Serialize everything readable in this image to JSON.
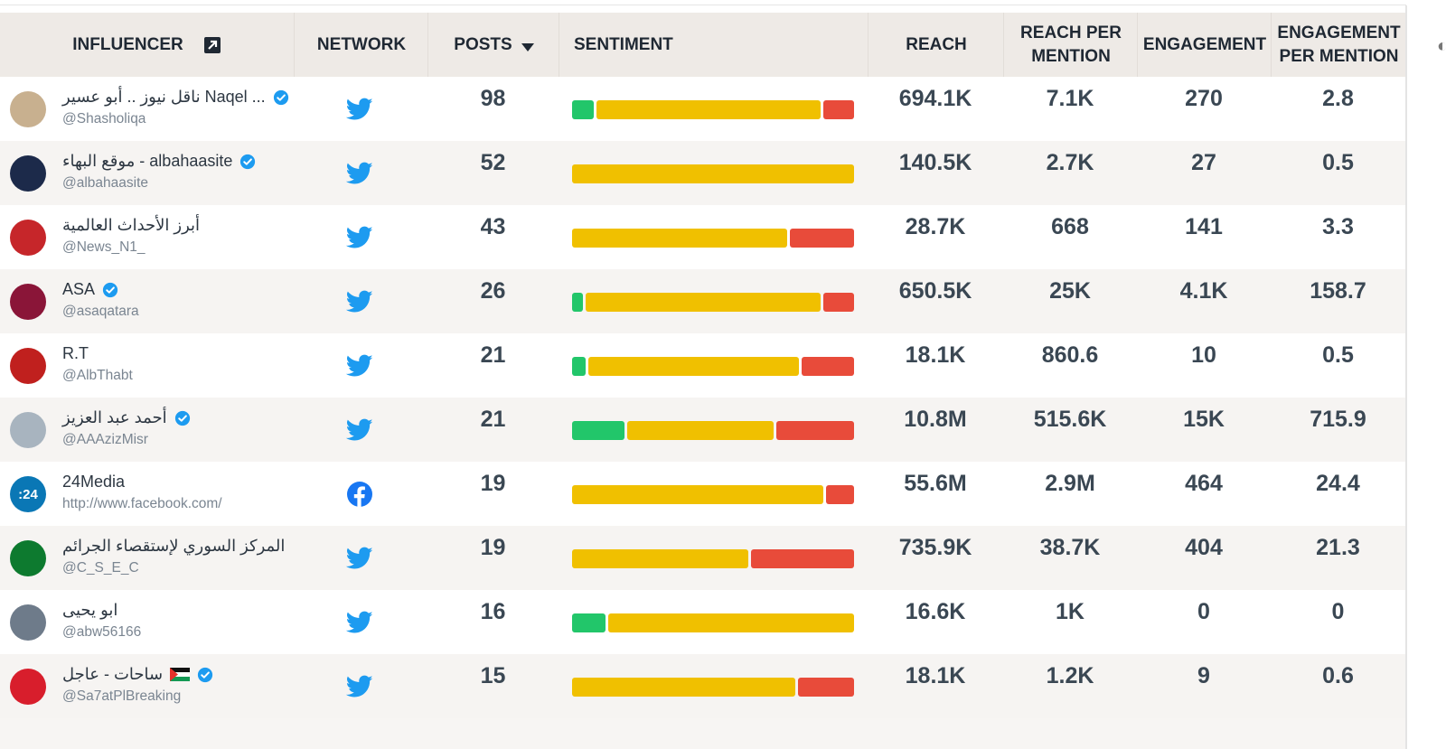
{
  "header": {
    "influencer": "INFLUENCER",
    "network": "NETWORK",
    "posts": "POSTS",
    "sentiment": "SENTIMENT",
    "reach": "REACH",
    "reach_per_mention": "REACH PER MENTION",
    "engagement": "ENGAGEMENT",
    "engagement_per_mention": "ENGAGEMENT PER MENTION"
  },
  "colors": {
    "positive": "#22c66a",
    "neutral": "#f0c000",
    "negative": "#e84b3a",
    "twitter": "#1d9bf0",
    "facebook": "#1877f2"
  },
  "rows": [
    {
      "name": "ناقل نيوز .. أبو عسير Naqel ...",
      "handle": "@Shasholiqa",
      "verified": true,
      "network": "twitter",
      "posts": "98",
      "sentiment": [
        0.08,
        0.81,
        0.11
      ],
      "reach": "694.1K",
      "reach_per_mention": "7.1K",
      "engagement": "270",
      "engagement_per_mention": "2.8",
      "avatar_color": "#c8b08f",
      "avatar_text": ""
    },
    {
      "name": "موقع البهاء - albahaasite",
      "handle": "@albahaasite",
      "verified": true,
      "network": "twitter",
      "posts": "52",
      "sentiment": [
        0,
        1,
        0
      ],
      "reach": "140.5K",
      "reach_per_mention": "2.7K",
      "engagement": "27",
      "engagement_per_mention": "0.5",
      "avatar_color": "#1c2a4a",
      "avatar_text": ""
    },
    {
      "name": "أبرز الأحداث العالمية",
      "handle": "@News_N1_",
      "verified": false,
      "network": "twitter",
      "posts": "43",
      "sentiment": [
        0,
        0.77,
        0.23
      ],
      "reach": "28.7K",
      "reach_per_mention": "668",
      "engagement": "141",
      "engagement_per_mention": "3.3",
      "avatar_color": "#c6262a",
      "avatar_text": ""
    },
    {
      "name": "ASA",
      "handle": "@asaqatara",
      "verified": true,
      "network": "twitter",
      "posts": "26",
      "sentiment": [
        0.04,
        0.85,
        0.11
      ],
      "reach": "650.5K",
      "reach_per_mention": "25K",
      "engagement": "4.1K",
      "engagement_per_mention": "158.7",
      "avatar_color": "#8a1538",
      "avatar_text": ""
    },
    {
      "name": "R.T",
      "handle": "@AlbThabt",
      "verified": false,
      "network": "twitter",
      "posts": "21",
      "sentiment": [
        0.05,
        0.76,
        0.19
      ],
      "reach": "18.1K",
      "reach_per_mention": "860.6",
      "engagement": "10",
      "engagement_per_mention": "0.5",
      "avatar_color": "#c0201e",
      "avatar_text": ""
    },
    {
      "name": "أحمد عبد العزيز",
      "handle": "@AAAzizMisr",
      "verified": true,
      "network": "twitter",
      "posts": "21",
      "sentiment": [
        0.19,
        0.53,
        0.28
      ],
      "reach": "10.8M",
      "reach_per_mention": "515.6K",
      "engagement": "15K",
      "engagement_per_mention": "715.9",
      "avatar_color": "#a8b4bf",
      "avatar_text": ""
    },
    {
      "name": "24Media",
      "handle": "http://www.facebook.com/",
      "verified": false,
      "network": "facebook",
      "posts": "19",
      "sentiment": [
        0,
        0.9,
        0.1
      ],
      "reach": "55.6M",
      "reach_per_mention": "2.9M",
      "engagement": "464",
      "engagement_per_mention": "24.4",
      "avatar_color": "#0a77b5",
      "avatar_text": ":24"
    },
    {
      "name": "المركز السوري لإستقصاء الجرائم",
      "handle": "@C_S_E_C",
      "verified": false,
      "network": "twitter",
      "posts": "19",
      "sentiment": [
        0,
        0.63,
        0.37
      ],
      "reach": "735.9K",
      "reach_per_mention": "38.7K",
      "engagement": "404",
      "engagement_per_mention": "21.3",
      "avatar_color": "#0d7a2f",
      "avatar_text": ""
    },
    {
      "name": "ابو يحيى",
      "handle": "@abw56166",
      "verified": false,
      "network": "twitter",
      "posts": "16",
      "sentiment": [
        0.12,
        0.88,
        0
      ],
      "reach": "16.6K",
      "reach_per_mention": "1K",
      "engagement": "0",
      "engagement_per_mention": "0",
      "avatar_color": "#6e7b8a",
      "avatar_text": ""
    },
    {
      "name": "ساحات - عاجل",
      "handle": "@Sa7atPlBreaking",
      "verified": true,
      "network": "twitter",
      "posts": "15",
      "sentiment": [
        0,
        0.8,
        0.2
      ],
      "reach": "18.1K",
      "reach_per_mention": "1.2K",
      "engagement": "9",
      "engagement_per_mention": "0.6",
      "avatar_color": "#d81e2c",
      "avatar_text": "",
      "flag_icon": "palestine-flag-icon"
    }
  ]
}
